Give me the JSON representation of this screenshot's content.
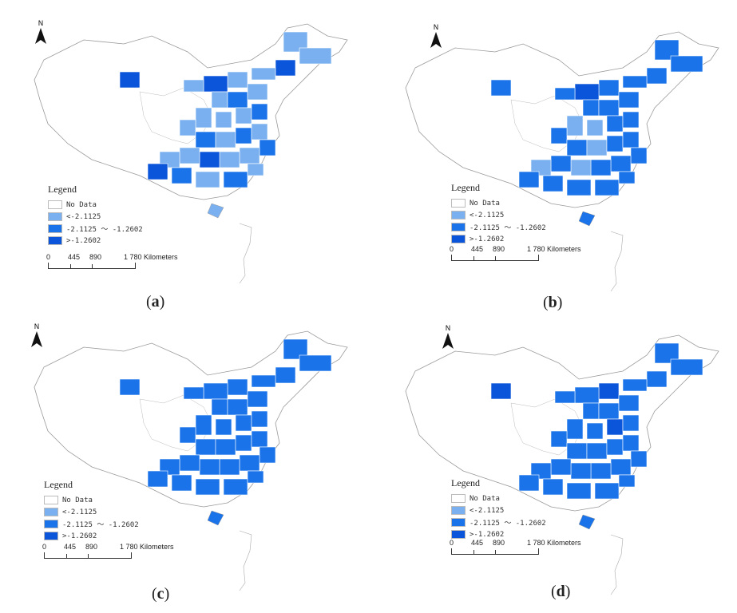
{
  "panels": [
    {
      "id": "a",
      "caption_label": "a"
    },
    {
      "id": "b",
      "caption_label": "b"
    },
    {
      "id": "c",
      "caption_label": "c"
    },
    {
      "id": "d",
      "caption_label": "d"
    }
  ],
  "north_label": "N",
  "legend": {
    "title": "Legend",
    "items": [
      {
        "label": "No Data",
        "color": "#ffffff"
      },
      {
        "label": "<-2.1125",
        "color": "#7ab0f0"
      },
      {
        "label": "-2.1125 ～ -1.2602",
        "color": "#1a73e8"
      },
      {
        "label": ">-1.2602",
        "color": "#0a55d9"
      }
    ]
  },
  "scale": {
    "labels": [
      "0",
      "445",
      "890",
      "1 780 Kilometers"
    ]
  },
  "colors": {
    "light": "#7ab0f0",
    "medium": "#1a73e8",
    "dark": "#0a55d9",
    "nodata": "#ffffff",
    "outline": "#9a9a9a"
  }
}
